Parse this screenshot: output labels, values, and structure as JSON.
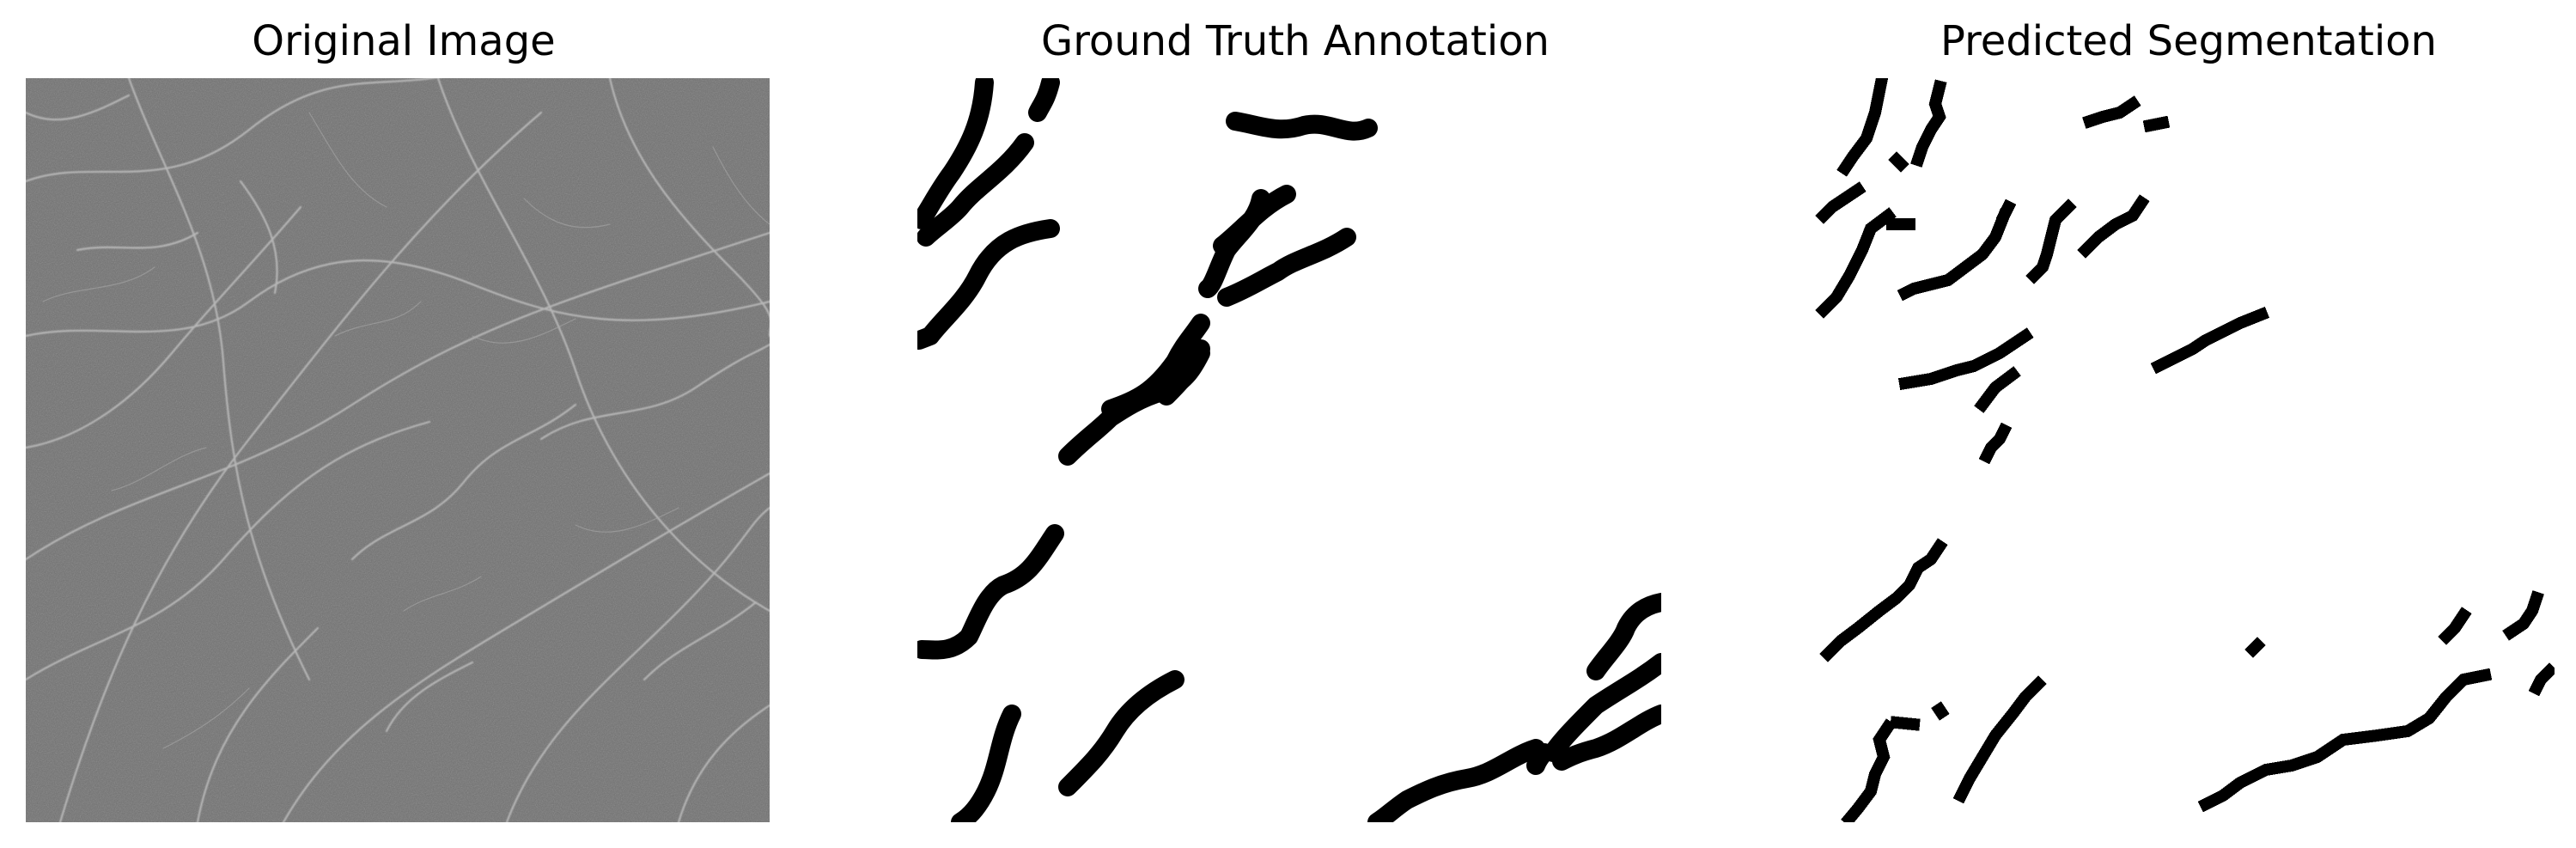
{
  "figure": {
    "panels": [
      {
        "title": "Original Image",
        "content": "grayscale texture photograph"
      },
      {
        "title": "Ground Truth Annotation",
        "content": "binary mask"
      },
      {
        "title": "Predicted Segmentation",
        "content": "binary mask"
      }
    ]
  },
  "colors": {
    "background": "#ffffff",
    "texture_base": "#6f6f6f",
    "texture_line": "#c8c8c8",
    "mask_fg": "#000000",
    "mask_bg": "#ffffff"
  }
}
